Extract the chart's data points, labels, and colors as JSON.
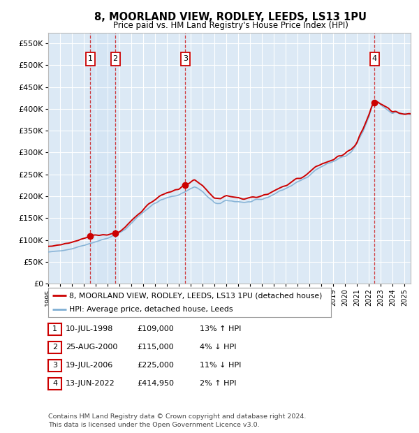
{
  "title": "8, MOORLAND VIEW, RODLEY, LEEDS, LS13 1PU",
  "subtitle": "Price paid vs. HM Land Registry's House Price Index (HPI)",
  "ylim": [
    0,
    575000
  ],
  "yticks": [
    0,
    50000,
    100000,
    150000,
    200000,
    250000,
    300000,
    350000,
    400000,
    450000,
    500000,
    550000
  ],
  "xlim_start": 1995.0,
  "xlim_end": 2025.5,
  "bg_color": "#dce9f5",
  "grid_color": "#ffffff",
  "sale_points": [
    {
      "year": 1998.53,
      "price": 109000,
      "label": "1"
    },
    {
      "year": 2000.65,
      "price": 115000,
      "label": "2"
    },
    {
      "year": 2006.54,
      "price": 225000,
      "label": "3"
    },
    {
      "year": 2022.45,
      "price": 414950,
      "label": "4"
    }
  ],
  "legend_line1": "8, MOORLAND VIEW, RODLEY, LEEDS, LS13 1PU (detached house)",
  "legend_line2": "HPI: Average price, detached house, Leeds",
  "legend_color1": "#cc0000",
  "legend_color2": "#80afd4",
  "table_rows": [
    {
      "num": "1",
      "date": "10-JUL-1998",
      "price": "£109,000",
      "hpi": "13% ↑ HPI"
    },
    {
      "num": "2",
      "date": "25-AUG-2000",
      "price": "£115,000",
      "hpi": "4% ↓ HPI"
    },
    {
      "num": "3",
      "date": "19-JUL-2006",
      "price": "£225,000",
      "hpi": "11% ↓ HPI"
    },
    {
      "num": "4",
      "date": "13-JUN-2022",
      "price": "£414,950",
      "hpi": "2% ↑ HPI"
    }
  ],
  "footnote1": "Contains HM Land Registry data © Crown copyright and database right 2024.",
  "footnote2": "This data is licensed under the Open Government Licence v3.0.",
  "sale_marker_color": "#cc0000",
  "sale_box_color": "#cc0000",
  "vline_color": "#cc0000",
  "prop_color": "#cc0000",
  "hpi_color": "#80afd4"
}
